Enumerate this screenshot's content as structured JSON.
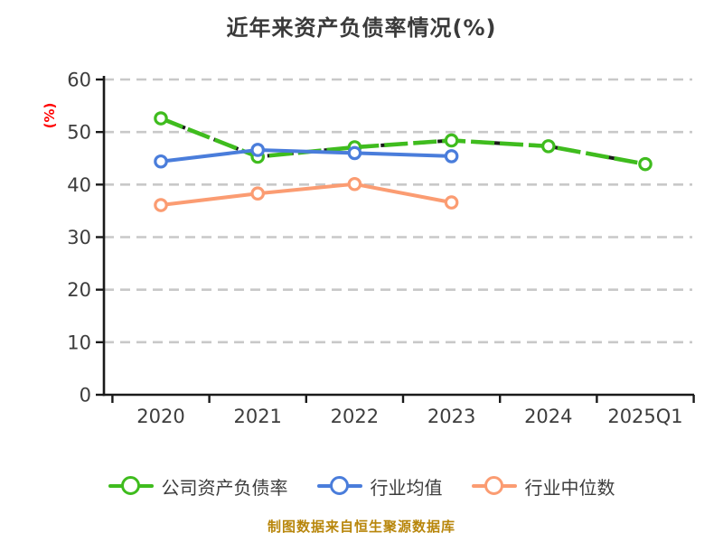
{
  "title": "近年来资产负债率情况(%)",
  "y_axis_label": "(%)",
  "footer": "制图数据来自恒生聚源数据库",
  "colors": {
    "title_text": "#3a3a3a",
    "tick_text": "#3d3d3d",
    "axis": "#1a1a1a",
    "gridline": "#c8c8c8",
    "ylabel_red": "#ff0000",
    "footer_gold": "#b8860b",
    "marker_fill": "#ffffff",
    "dash_overlay": "#1a1a1a"
  },
  "chart_data": {
    "type": "line",
    "title": "近年来资产负债率情况(%)",
    "ylabel": "(%)",
    "xlabel": "",
    "categories": [
      "2020",
      "2021",
      "2022",
      "2023",
      "2024",
      "2025Q1"
    ],
    "series": [
      {
        "name": "公司资产负债率",
        "color": "#3fbc1e",
        "values": [
          52.6,
          45.3,
          47.1,
          48.4,
          47.3,
          43.9
        ],
        "black_dashed_overlay": true
      },
      {
        "name": "行业均值",
        "color": "#4a7ddb",
        "values": [
          44.4,
          46.6,
          46.0,
          45.4,
          null,
          null
        ],
        "black_dashed_overlay": false
      },
      {
        "name": "行业中位数",
        "color": "#fb9c72",
        "values": [
          36.1,
          38.3,
          40.1,
          36.6,
          null,
          null
        ],
        "black_dashed_overlay": false
      }
    ],
    "ylim": [
      0,
      60
    ],
    "yticks": [
      0,
      10,
      20,
      30,
      40,
      50,
      60
    ],
    "grid": true,
    "grid_style": "dashed",
    "legend_position": "bottom",
    "marker": "circle-white-fill"
  }
}
